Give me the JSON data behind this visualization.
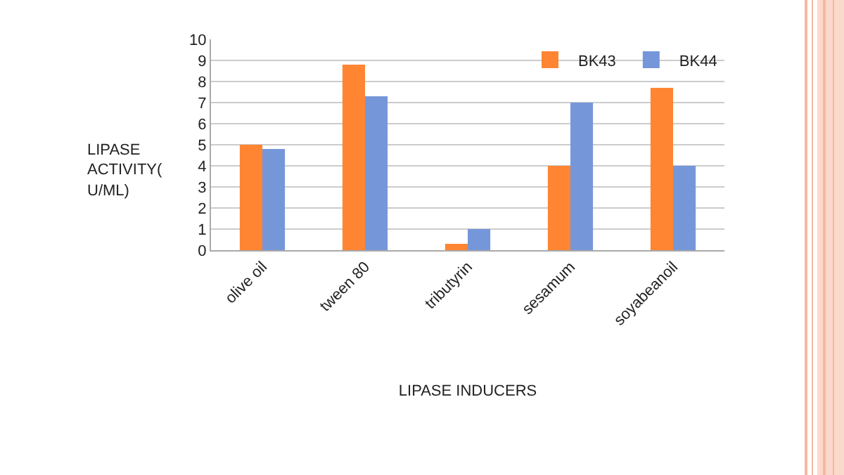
{
  "chart_data": {
    "type": "bar",
    "xlabel": "LIPASE INDUCERS",
    "ylabel": "LIPASE ACTIVITY( U/ML)",
    "categories": [
      "olive oil",
      "tween 80",
      "tributyrin",
      "sesamum",
      "soyabeanoil"
    ],
    "series": [
      {
        "name": "BK43",
        "color": "#ff8533",
        "values": [
          5,
          8.8,
          0.3,
          4,
          7.7
        ]
      },
      {
        "name": "BK44",
        "color": "#7597d9",
        "values": [
          4.8,
          7.3,
          1,
          7,
          4
        ]
      }
    ],
    "ylim": [
      0,
      10
    ],
    "yticks": [
      0,
      1,
      2,
      3,
      4,
      5,
      6,
      7,
      8,
      9,
      10
    ],
    "grid": "y",
    "legend": "top right"
  }
}
